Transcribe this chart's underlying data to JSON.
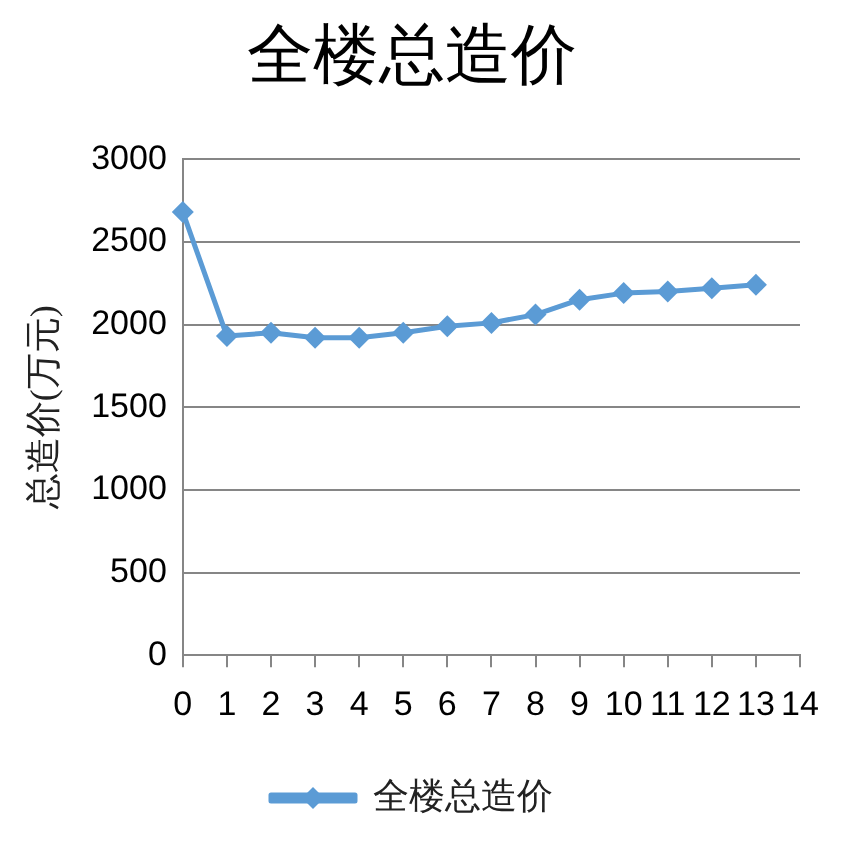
{
  "chart_data": {
    "type": "line",
    "title": "全楼总造价",
    "ylabel": "总造价(万元)",
    "x": [
      0,
      1,
      2,
      3,
      4,
      5,
      6,
      7,
      8,
      9,
      10,
      11,
      12,
      13
    ],
    "series": [
      {
        "name": "全楼总造价",
        "color": "#5b9bd5",
        "values": [
          2680,
          1930,
          1950,
          1920,
          1920,
          1950,
          1990,
          2010,
          2060,
          2150,
          2190,
          2200,
          2220,
          2240
        ]
      }
    ],
    "xlim": [
      0,
      14
    ],
    "xticks": [
      0,
      1,
      2,
      3,
      4,
      5,
      6,
      7,
      8,
      9,
      10,
      11,
      12,
      13,
      14
    ],
    "ylim": [
      0,
      3000
    ],
    "yticks": [
      0,
      500,
      1000,
      1500,
      2000,
      2500,
      3000
    ],
    "grid": "y",
    "legend": "bottom",
    "marker": "diamond",
    "line_style": "solid"
  }
}
